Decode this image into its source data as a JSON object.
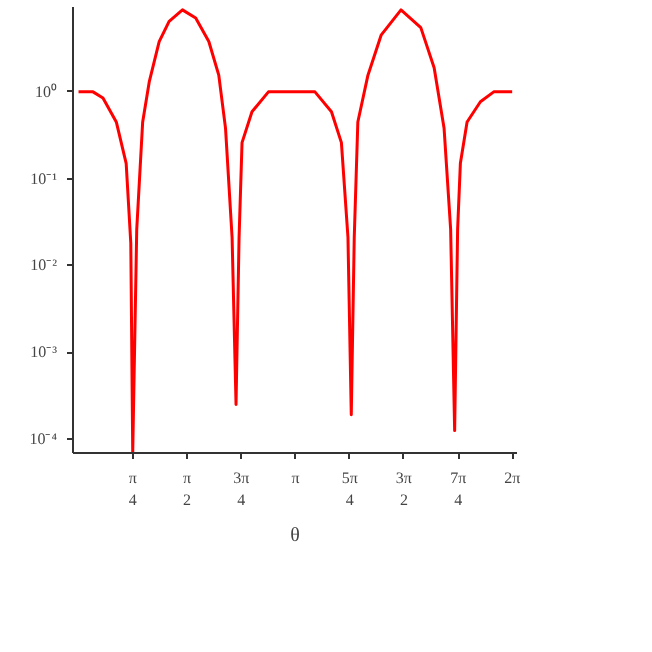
{
  "chart_data": {
    "type": "line",
    "xlabel": "θ",
    "log": "y",
    "grid": false,
    "line_style": "solid",
    "marker": "none",
    "xlim": [
      -0.08,
      6.35
    ],
    "ylim": [
      6.9e-05,
      9.5
    ],
    "xticks": [
      {
        "value": 0.785,
        "label": "π\n4"
      },
      {
        "value": 1.571,
        "label": "π\n2"
      },
      {
        "value": 2.356,
        "label": "3π\n4"
      },
      {
        "value": 3.142,
        "label": "π"
      },
      {
        "value": 3.927,
        "label": "5π\n4"
      },
      {
        "value": 4.712,
        "label": "3π\n2"
      },
      {
        "value": 5.498,
        "label": "7π\n4"
      },
      {
        "value": 6.283,
        "label": "2π"
      }
    ],
    "yticks": [
      {
        "value": 1,
        "label": "10⁰"
      },
      {
        "value": 0.1,
        "label": "10⁻¹"
      },
      {
        "value": 0.01,
        "label": "10⁻²"
      },
      {
        "value": 0.001,
        "label": "10⁻³"
      },
      {
        "value": 0.0001,
        "label": "10⁻⁴"
      }
    ],
    "series": [
      {
        "color": "#ff0000",
        "x": [
          0,
          0.21,
          0.354,
          0.547,
          0.69,
          0.757,
          0.785,
          0.843,
          0.929,
          1.024,
          1.168,
          1.312,
          1.505,
          1.697,
          1.887,
          2.031,
          2.129,
          2.224,
          2.281,
          2.325,
          2.368,
          2.512,
          2.75,
          3.424,
          3.663,
          3.807,
          3.902,
          3.95,
          3.993,
          4.045,
          4.189,
          4.382,
          4.67,
          4.957,
          5.15,
          5.294,
          5.389,
          5.447,
          5.49,
          5.53,
          5.627,
          5.82,
          6.013,
          6.28
        ],
        "values": [
          1,
          1,
          0.85,
          0.45,
          0.15,
          0.018,
          7e-05,
          0.026,
          0.45,
          1.3,
          3.8,
          6.5,
          8.8,
          7.1,
          3.8,
          1.56,
          0.38,
          0.021,
          0.00025,
          0.021,
          0.26,
          0.59,
          1,
          1,
          0.59,
          0.26,
          0.021,
          0.00019,
          0.021,
          0.45,
          1.53,
          4.5,
          8.8,
          5.5,
          1.9,
          0.38,
          0.026,
          0.000125,
          0.026,
          0.15,
          0.45,
          0.77,
          1,
          1
        ]
      }
    ]
  }
}
